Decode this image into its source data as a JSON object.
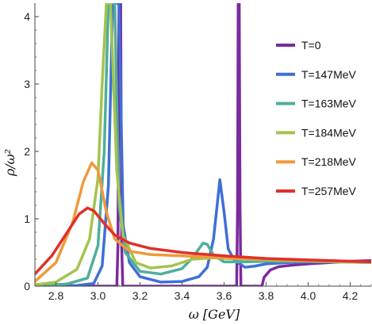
{
  "chart_data": {
    "type": "line",
    "title": "",
    "xlabel": "ω [GeV]",
    "ylabel": "ρ/ω²",
    "xlim": [
      2.7,
      4.3
    ],
    "ylim": [
      0,
      4.2
    ],
    "xticks": [
      "2.8",
      "3.0",
      "3.2",
      "3.4",
      "3.6",
      "3.8",
      "4.0",
      "4.2"
    ],
    "yticks": [
      "0",
      "1",
      "2",
      "3",
      "4"
    ],
    "legend_position": "right",
    "grid": false,
    "series": [
      {
        "name": "T=0",
        "color": "#7b2a9e",
        "points": [
          [
            2.7,
            0
          ],
          [
            3.09,
            0
          ],
          [
            3.095,
            0.6
          ],
          [
            3.1,
            4.2
          ],
          [
            3.108,
            4.2
          ],
          [
            3.113,
            0.6
          ],
          [
            3.118,
            0
          ],
          [
            3.66,
            0
          ],
          [
            3.664,
            1.2
          ],
          [
            3.667,
            4.2
          ],
          [
            3.672,
            4.2
          ],
          [
            3.676,
            1.2
          ],
          [
            3.68,
            0
          ],
          [
            3.78,
            0
          ],
          [
            3.79,
            0.13
          ],
          [
            3.82,
            0.24
          ],
          [
            3.86,
            0.29
          ],
          [
            3.92,
            0.31
          ],
          [
            4.0,
            0.33
          ],
          [
            4.1,
            0.35
          ],
          [
            4.2,
            0.37
          ],
          [
            4.3,
            0.38
          ]
        ]
      },
      {
        "name": "T=147MeV",
        "color": "#3e6fd6",
        "points": [
          [
            2.7,
            0
          ],
          [
            2.9,
            0.01
          ],
          [
            2.98,
            0.04
          ],
          [
            3.02,
            0.3
          ],
          [
            3.05,
            1.5
          ],
          [
            3.07,
            4.2
          ],
          [
            3.1,
            4.2
          ],
          [
            3.12,
            0.9
          ],
          [
            3.15,
            0.35
          ],
          [
            3.2,
            0.14
          ],
          [
            3.3,
            0.06
          ],
          [
            3.4,
            0.07
          ],
          [
            3.48,
            0.14
          ],
          [
            3.52,
            0.28
          ],
          [
            3.55,
            0.7
          ],
          [
            3.58,
            1.58
          ],
          [
            3.6,
            1.1
          ],
          [
            3.62,
            0.55
          ],
          [
            3.65,
            0.38
          ],
          [
            3.7,
            0.28
          ],
          [
            3.75,
            0.3
          ],
          [
            3.8,
            0.33
          ],
          [
            3.9,
            0.35
          ],
          [
            4.0,
            0.36
          ],
          [
            4.1,
            0.36
          ],
          [
            4.2,
            0.36
          ],
          [
            4.3,
            0.35
          ]
        ]
      },
      {
        "name": "T=163MeV",
        "color": "#4fae9c",
        "points": [
          [
            2.7,
            0.01
          ],
          [
            2.85,
            0.03
          ],
          [
            2.95,
            0.12
          ],
          [
            3.0,
            0.6
          ],
          [
            3.03,
            2.0
          ],
          [
            3.05,
            4.2
          ],
          [
            3.08,
            4.2
          ],
          [
            3.1,
            1.2
          ],
          [
            3.13,
            0.5
          ],
          [
            3.2,
            0.22
          ],
          [
            3.3,
            0.18
          ],
          [
            3.4,
            0.26
          ],
          [
            3.45,
            0.42
          ],
          [
            3.5,
            0.64
          ],
          [
            3.52,
            0.62
          ],
          [
            3.55,
            0.46
          ],
          [
            3.6,
            0.36
          ],
          [
            3.7,
            0.36
          ],
          [
            3.8,
            0.37
          ],
          [
            4.0,
            0.37
          ],
          [
            4.3,
            0.35
          ]
        ]
      },
      {
        "name": "T=184MeV",
        "color": "#a5c34f",
        "points": [
          [
            2.7,
            0.02
          ],
          [
            2.8,
            0.06
          ],
          [
            2.9,
            0.25
          ],
          [
            2.96,
            0.7
          ],
          [
            3.0,
            1.6
          ],
          [
            3.02,
            3.0
          ],
          [
            3.04,
            4.2
          ],
          [
            3.06,
            4.2
          ],
          [
            3.09,
            1.7
          ],
          [
            3.12,
            0.75
          ],
          [
            3.18,
            0.35
          ],
          [
            3.25,
            0.27
          ],
          [
            3.35,
            0.3
          ],
          [
            3.45,
            0.4
          ],
          [
            3.55,
            0.42
          ],
          [
            3.7,
            0.4
          ],
          [
            3.9,
            0.38
          ],
          [
            4.3,
            0.35
          ]
        ]
      },
      {
        "name": "T=218MeV",
        "color": "#ee9a3a",
        "points": [
          [
            2.7,
            0.07
          ],
          [
            2.8,
            0.35
          ],
          [
            2.88,
            0.95
          ],
          [
            2.93,
            1.55
          ],
          [
            2.97,
            1.83
          ],
          [
            3.0,
            1.72
          ],
          [
            3.04,
            1.1
          ],
          [
            3.08,
            0.7
          ],
          [
            3.15,
            0.52
          ],
          [
            3.25,
            0.47
          ],
          [
            3.4,
            0.45
          ],
          [
            3.6,
            0.42
          ],
          [
            3.8,
            0.4
          ],
          [
            4.0,
            0.38
          ],
          [
            4.3,
            0.36
          ]
        ]
      },
      {
        "name": "T=257MeV",
        "color": "#e0302a",
        "points": [
          [
            2.7,
            0.18
          ],
          [
            2.78,
            0.45
          ],
          [
            2.85,
            0.78
          ],
          [
            2.91,
            1.07
          ],
          [
            2.95,
            1.16
          ],
          [
            2.98,
            1.12
          ],
          [
            3.03,
            0.93
          ],
          [
            3.08,
            0.76
          ],
          [
            3.15,
            0.64
          ],
          [
            3.25,
            0.56
          ],
          [
            3.4,
            0.5
          ],
          [
            3.6,
            0.45
          ],
          [
            3.8,
            0.41
          ],
          [
            4.0,
            0.39
          ],
          [
            4.3,
            0.36
          ]
        ]
      }
    ]
  }
}
